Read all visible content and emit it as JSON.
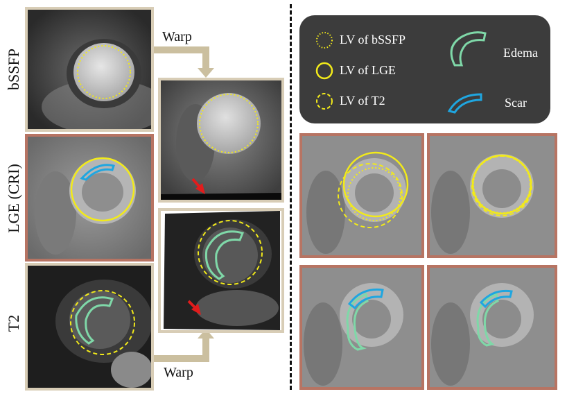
{
  "row_labels": {
    "bssfp": "bSSFP",
    "lge": "LGE (CRI)",
    "t2": "T2"
  },
  "warp_labels": {
    "top": "Warp",
    "bottom": "Warp"
  },
  "legend": {
    "lv_bssfp": "LV of bSSFP",
    "lv_lge": "LV of  LGE",
    "lv_t2": "LV of T2",
    "edema": "Edema",
    "scar": "Scar"
  },
  "colors": {
    "lv_contour": "#f2ea1a",
    "edema": "#7fd8a8",
    "scar": "#1fa6e0",
    "warp_arrow": "#cbbf9f",
    "artifact_arrow": "#e11c1c",
    "frame_source": "#d8cdb6",
    "frame_result": "#b77463",
    "legend_background": "#3c3c3c"
  },
  "icons": [
    "dotted-circle-icon",
    "solid-circle-icon",
    "dashed-circle-icon",
    "edema-contour-icon",
    "scar-contour-icon",
    "warp-arrow-icon",
    "artifact-arrow-icon"
  ]
}
